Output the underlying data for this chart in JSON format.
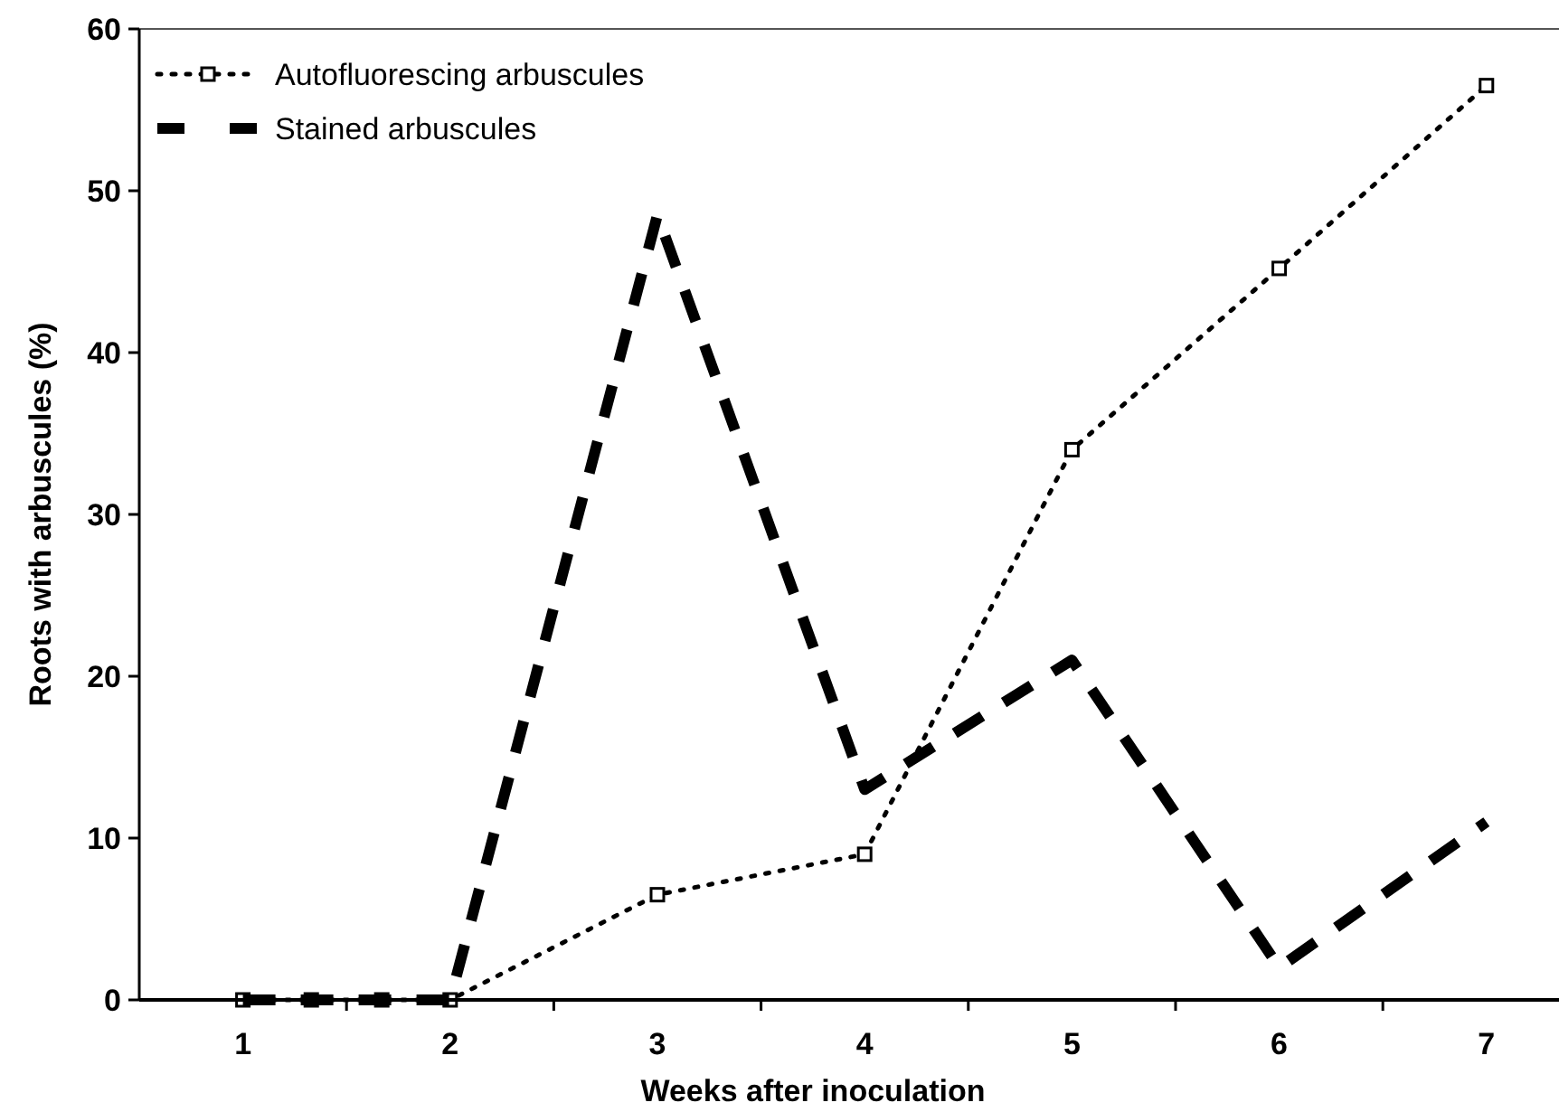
{
  "chart_data": {
    "type": "line",
    "xlabel": "Weeks after inoculation",
    "ylabel": "Roots with arbuscules (%)",
    "xlim": [
      0.5,
      7.35
    ],
    "xticks": [
      1,
      {
        "value": 1.5,
        "label": null
      },
      2,
      {
        "value": 2.5,
        "label": null
      },
      3,
      {
        "value": 3.5,
        "label": null
      },
      4,
      {
        "value": 4.5,
        "label": null
      },
      5,
      {
        "value": 5.5,
        "label": null
      },
      6,
      {
        "value": 6.5,
        "label": null
      },
      7
    ],
    "ylim": [
      0,
      60
    ],
    "yticks": [
      0,
      10,
      20,
      30,
      40,
      50,
      60
    ],
    "grid": false,
    "legend": "top left",
    "series": [
      {
        "name": "Autofluorescing arbuscules",
        "color": "#000000",
        "marker": "square",
        "line_style": "dotted",
        "x": [
          1,
          1.33,
          1.67,
          2,
          3,
          4,
          5,
          6,
          7
        ],
        "values": [
          0,
          0,
          0,
          0,
          6.5,
          9,
          34,
          45.2,
          56.5
        ]
      },
      {
        "name": "Stained arbuscules",
        "color": "#000000",
        "marker": "none",
        "line_style": "dashed",
        "x": [
          1,
          1.33,
          1.67,
          2,
          3,
          4,
          5,
          6,
          7
        ],
        "values": [
          0,
          0,
          0,
          0,
          48.5,
          13,
          21,
          2,
          11
        ]
      }
    ]
  }
}
